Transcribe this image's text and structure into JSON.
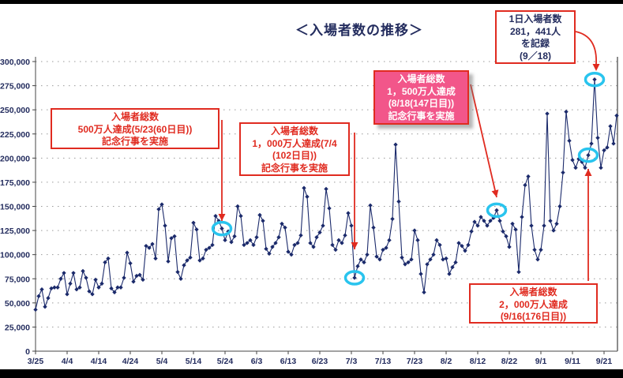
{
  "page": {
    "title": "＜入場者数の推移＞"
  },
  "colors": {
    "line": "#1b2a6b",
    "axis_text": "#232c5e",
    "gridline": "#9a9a9a",
    "annotation_red": "#e02b20",
    "milestone_box_pink": "#f2568a",
    "highlight_circle_cyan": "#29c4ee",
    "frame_black": "#000000"
  },
  "annotations": {
    "m500": {
      "lines": [
        "入場者総数",
        "500万人達成(5/23(60日目))",
        "記念行事を実施"
      ]
    },
    "m1000": {
      "lines": [
        "入場者総数",
        "1，000万人達成(7/4",
        "(102日目))",
        "記念行事を実施"
      ]
    },
    "m1500": {
      "lines": [
        "入場者総数",
        "1，500万人達成",
        "(8/18(147日目))",
        "記念行事を実施"
      ]
    },
    "record": {
      "lines": [
        "1日入場者数",
        "281，441人",
        "を記録",
        "(9／18)"
      ]
    },
    "m2000": {
      "lines": [
        "入場者総数",
        "2，000万人達成",
        "(9/16(176日目))"
      ]
    }
  },
  "chart_data": {
    "type": "line",
    "title": "＜入場者数の推移＞",
    "xlabel": "",
    "ylabel": "",
    "x_unit": "day (daily attendance, 3/25–9/25)",
    "ylim": [
      0,
      300000
    ],
    "grid": true,
    "x_tick_labels": [
      "3/25",
      "4/4",
      "4/14",
      "4/24",
      "5/4",
      "5/14",
      "5/24",
      "6/3",
      "6/13",
      "6/23",
      "7/3",
      "7/13",
      "7/23",
      "8/2",
      "8/12",
      "8/22",
      "9/1",
      "9/11",
      "9/21"
    ],
    "x_tick_day_step": 10,
    "y_ticks": [
      0,
      25000,
      50000,
      75000,
      100000,
      125000,
      150000,
      175000,
      200000,
      225000,
      250000,
      275000,
      300000
    ],
    "y_tick_labels": [
      "0",
      "25,000",
      "50,000",
      "75,000",
      "100,000",
      "125,000",
      "150,000",
      "175,000",
      "200,000",
      "225,000",
      "250,000",
      "275,000",
      "300,000"
    ],
    "series": [
      {
        "name": "1日入場者数",
        "values": [
          43000,
          57000,
          64000,
          46000,
          55000,
          65000,
          66000,
          66000,
          75000,
          81000,
          59000,
          70000,
          81000,
          64000,
          66000,
          83000,
          76000,
          62000,
          59000,
          74000,
          66000,
          70000,
          92000,
          96000,
          65000,
          61000,
          66000,
          66000,
          76000,
          102000,
          91000,
          72000,
          78000,
          79000,
          74000,
          109000,
          107000,
          111000,
          96000,
          147000,
          152000,
          130000,
          93000,
          117000,
          119000,
          82000,
          75000,
          89000,
          94000,
          97000,
          133000,
          126000,
          94000,
          96000,
          105000,
          107000,
          110000,
          140000,
          135000,
          127000,
          115000,
          124000,
          113000,
          119000,
          150000,
          140000,
          110000,
          112000,
          115000,
          110000,
          118000,
          141000,
          135000,
          106000,
          101000,
          108000,
          112000,
          118000,
          132000,
          128000,
          103000,
          100000,
          110000,
          112000,
          120000,
          169000,
          160000,
          112000,
          108000,
          118000,
          123000,
          130000,
          168000,
          148000,
          110000,
          105000,
          115000,
          112000,
          120000,
          143000,
          130000,
          76000,
          88000,
          95000,
          92000,
          100000,
          151000,
          128000,
          98000,
          95000,
          105000,
          107000,
          115000,
          137000,
          214000,
          155000,
          97000,
          90000,
          92000,
          95000,
          125000,
          115000,
          80000,
          61000,
          90000,
          95000,
          100000,
          115000,
          110000,
          95000,
          96000,
          80000,
          87000,
          92000,
          112000,
          109000,
          104000,
          110000,
          124000,
          134000,
          130000,
          139000,
          135000,
          130000,
          135000,
          138000,
          146000,
          135000,
          124000,
          119000,
          108000,
          132000,
          126000,
          82000,
          139000,
          172000,
          181000,
          130000,
          105000,
          95000,
          105000,
          130000,
          246000,
          135000,
          125000,
          132000,
          150000,
          185000,
          248000,
          218000,
          198000,
          190000,
          199000,
          196000,
          190000,
          203000,
          215000,
          281441,
          221000,
          190000,
          208000,
          211000,
          233000,
          215000,
          244000
        ]
      }
    ],
    "highlighted_points": [
      {
        "index": 59,
        "date_label": "5/23",
        "note": "入場者総数500万人達成(60日目)"
      },
      {
        "index": 101,
        "date_label": "7/4",
        "note": "入場者総数1,000万人達成(102日目)"
      },
      {
        "index": 146,
        "date_label": "8/18",
        "note": "入場者総数1,500万人達成(147日目)"
      },
      {
        "index": 175,
        "date_label": "9/16",
        "note": "入場者総数2,000万人達成(176日目)"
      },
      {
        "index": 177,
        "date_label": "9/18",
        "note": "1日入場者数281,441人を記録"
      }
    ],
    "legend": "none"
  }
}
